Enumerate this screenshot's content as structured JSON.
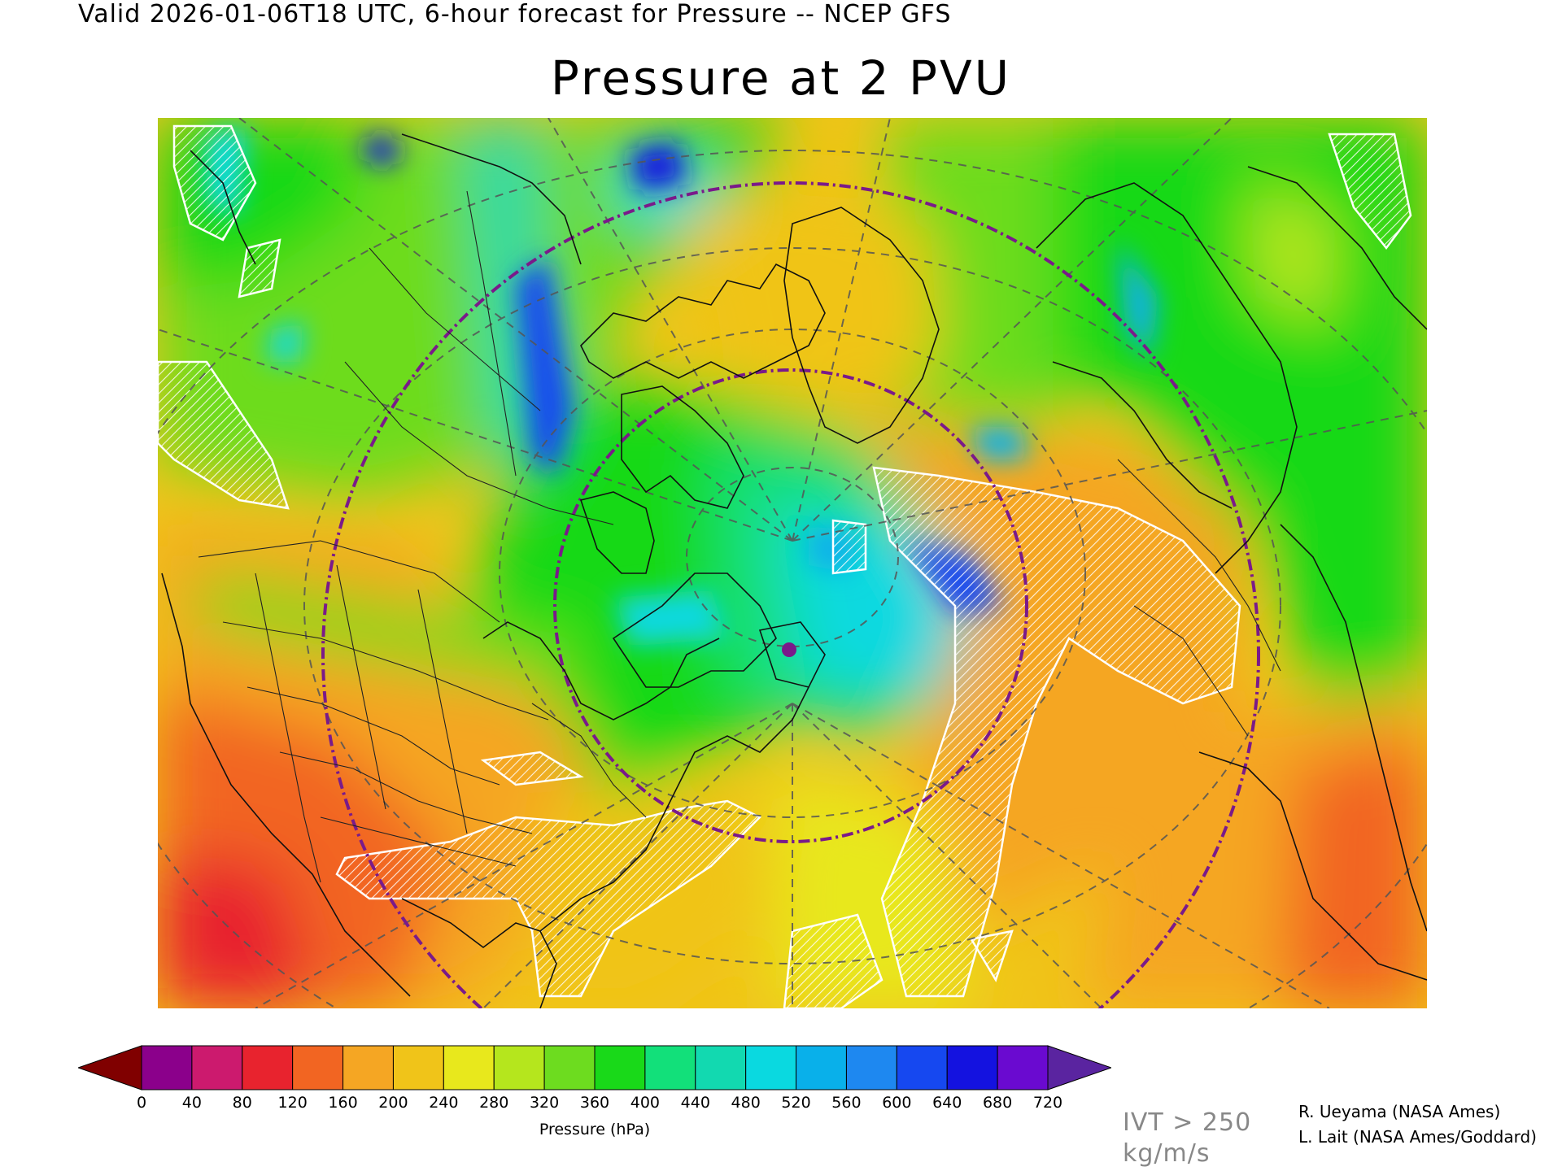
{
  "header": {
    "valid_line": "Valid 2026-01-06T18 UTC, 6-hour forecast for Pressure -- NCEP GFS",
    "title": "Pressure at 2 PVU"
  },
  "map": {
    "field": "Pressure at 2 PVU",
    "projection": "north-polar-stereographic",
    "overlay": "IVT > 250 kg/m/s hatched contours (white)",
    "features": [
      "coastlines",
      "country-borders",
      "state-province-borders",
      "lat-lon-grid",
      "purple-dash-dot-circles",
      "purple-marker"
    ]
  },
  "colorbar": {
    "caption": "Pressure (hPa)",
    "ticks": [
      "0",
      "40",
      "80",
      "120",
      "160",
      "200",
      "240",
      "280",
      "320",
      "360",
      "400",
      "440",
      "480",
      "520",
      "560",
      "600",
      "640",
      "680",
      "720"
    ],
    "colors": [
      "#8b008b",
      "#cc1a6e",
      "#e8232e",
      "#f26522",
      "#f5a623",
      "#f0c419",
      "#e8e81c",
      "#b5e61d",
      "#6ddc1f",
      "#19d919",
      "#12e07a",
      "#12d9b0",
      "#0ad9e0",
      "#09b0ea",
      "#1e88f0",
      "#1648f0",
      "#1412e0",
      "#6a0ad0"
    ],
    "under_color": "#800000",
    "over_color": "#5a24a0"
  },
  "ivt_note": {
    "line1": "IVT > 250",
    "line2": "kg/m/s"
  },
  "credits": {
    "line1": "R. Ueyama (NASA Ames)",
    "line2": "L. Lait (NASA Ames/Goddard)"
  }
}
